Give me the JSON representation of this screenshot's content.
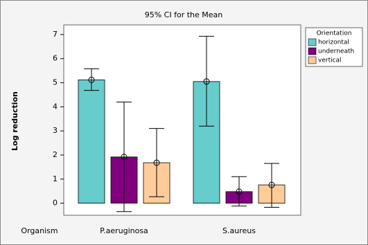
{
  "chart_data": {
    "type": "bar",
    "title": "95% CI for the Mean",
    "ylabel": "Log reduction",
    "xlabel": "Organism",
    "categories": [
      "P.aeruginosa",
      "S.aureus"
    ],
    "legend_title": "Orientation",
    "series": [
      {
        "name": "horizontal",
        "color": "#66cccc",
        "values": [
          5.12,
          5.05
        ],
        "ci_low": [
          4.68,
          3.2
        ],
        "ci_high": [
          5.58,
          6.93
        ]
      },
      {
        "name": "underneath",
        "color": "#800080",
        "values": [
          1.92,
          0.48
        ],
        "ci_low": [
          -0.35,
          -0.12
        ],
        "ci_high": [
          4.2,
          1.1
        ]
      },
      {
        "name": "vertical",
        "color": "#ffcc99",
        "values": [
          1.68,
          0.76
        ],
        "ci_low": [
          0.27,
          -0.17
        ],
        "ci_high": [
          3.1,
          1.65
        ]
      }
    ],
    "ylim": [
      -0.5,
      7.4
    ],
    "yticks": [
      0,
      1,
      2,
      3,
      4,
      5,
      6,
      7
    ]
  }
}
